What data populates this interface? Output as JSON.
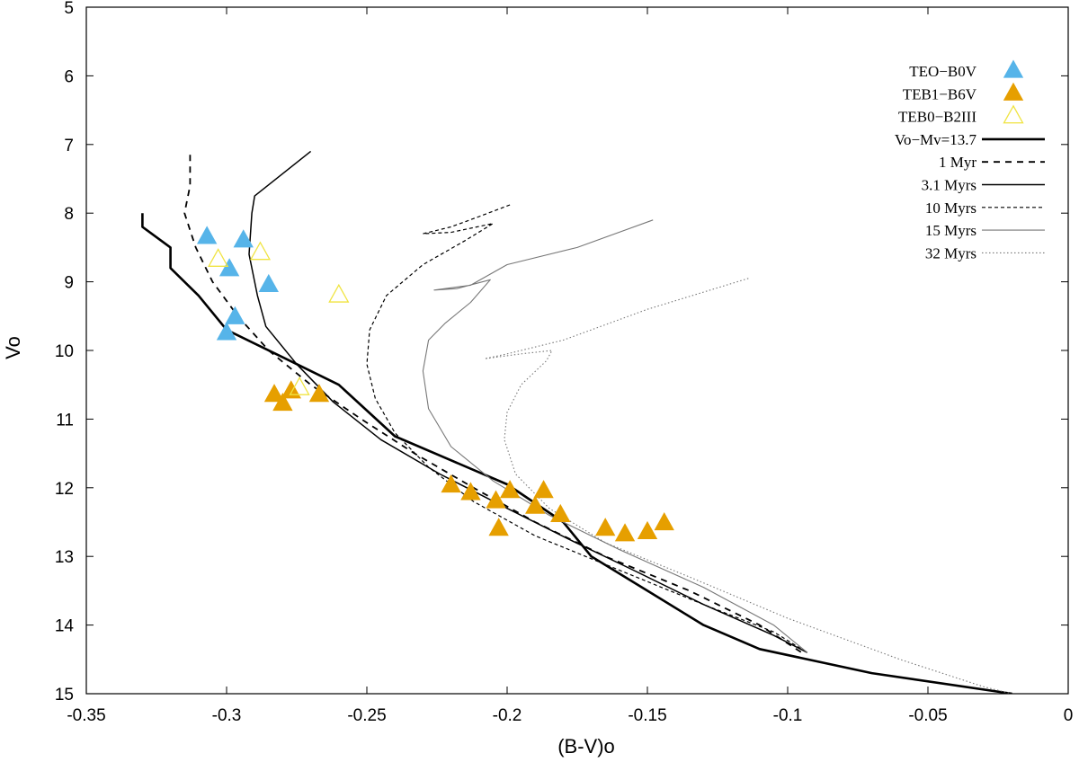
{
  "chart_data": {
    "type": "scatter",
    "title": "",
    "xlabel": "(B-V)o",
    "ylabel": "Vo",
    "xlim": [
      -0.35,
      0
    ],
    "ylim": [
      5,
      15
    ],
    "y_inverted": true,
    "grid": false,
    "legend_position": "top-right",
    "x_ticks": [
      -0.35,
      -0.3,
      -0.25,
      -0.2,
      -0.15,
      -0.1,
      -0.05,
      0
    ],
    "x_tick_labels": [
      "-0.35",
      "-0.3",
      "-0.25",
      "-0.2",
      "-0.15",
      "-0.1",
      "-0.05",
      "0"
    ],
    "y_ticks": [
      5,
      6,
      7,
      8,
      9,
      10,
      11,
      12,
      13,
      14,
      15
    ],
    "y_tick_labels": [
      "5",
      "6",
      "7",
      "8",
      "9",
      "10",
      "11",
      "12",
      "13",
      "14",
      "15"
    ],
    "series": [
      {
        "name": "TEO−B0V",
        "kind": "scatter",
        "marker": "triangle-filled",
        "color": "#56b4e9",
        "points": [
          [
            -0.307,
            8.35
          ],
          [
            -0.294,
            8.4
          ],
          [
            -0.299,
            8.82
          ],
          [
            -0.285,
            9.05
          ],
          [
            -0.297,
            9.52
          ],
          [
            -0.3,
            9.75
          ]
        ]
      },
      {
        "name": "TEB1−B6V",
        "kind": "scatter",
        "marker": "triangle-filled",
        "color": "#e69f00",
        "points": [
          [
            -0.283,
            10.65
          ],
          [
            -0.277,
            10.6
          ],
          [
            -0.28,
            10.78
          ],
          [
            -0.267,
            10.65
          ],
          [
            -0.22,
            11.97
          ],
          [
            -0.213,
            12.08
          ],
          [
            -0.204,
            12.2
          ],
          [
            -0.199,
            12.05
          ],
          [
            -0.203,
            12.6
          ],
          [
            -0.187,
            12.05
          ],
          [
            -0.19,
            12.28
          ],
          [
            -0.181,
            12.4
          ],
          [
            -0.165,
            12.6
          ],
          [
            -0.158,
            12.68
          ],
          [
            -0.15,
            12.65
          ],
          [
            -0.144,
            12.52
          ]
        ]
      },
      {
        "name": "TEB0−B2III",
        "kind": "scatter",
        "marker": "triangle-open",
        "color": "#f0e442",
        "points": [
          [
            -0.303,
            8.68
          ],
          [
            -0.288,
            8.58
          ],
          [
            -0.26,
            9.2
          ],
          [
            -0.274,
            10.55
          ]
        ]
      },
      {
        "name": "Vo−Mv=13.7",
        "kind": "line",
        "style": "solid-thick",
        "color": "#000000",
        "points": [
          [
            -0.33,
            8.0
          ],
          [
            -0.33,
            8.2
          ],
          [
            -0.32,
            8.5
          ],
          [
            -0.32,
            8.8
          ],
          [
            -0.31,
            9.2
          ],
          [
            -0.3,
            9.7
          ],
          [
            -0.28,
            10.1
          ],
          [
            -0.26,
            10.5
          ],
          [
            -0.24,
            11.25
          ],
          [
            -0.2,
            11.95
          ],
          [
            -0.18,
            12.5
          ],
          [
            -0.17,
            13.0
          ],
          [
            -0.15,
            13.5
          ],
          [
            -0.13,
            14.0
          ],
          [
            -0.11,
            14.35
          ],
          [
            -0.07,
            14.7
          ],
          [
            -0.02,
            15.0
          ]
        ]
      },
      {
        "name": "1 Myr",
        "kind": "line",
        "style": "dashed",
        "color": "#000000",
        "points": [
          [
            -0.313,
            7.15
          ],
          [
            -0.313,
            7.6
          ],
          [
            -0.315,
            8.0
          ],
          [
            -0.311,
            8.5
          ],
          [
            -0.305,
            9.0
          ],
          [
            -0.296,
            9.5
          ],
          [
            -0.285,
            10.0
          ],
          [
            -0.27,
            10.5
          ],
          [
            -0.252,
            11.0
          ],
          [
            -0.233,
            11.5
          ],
          [
            -0.212,
            12.0
          ],
          [
            -0.19,
            12.5
          ],
          [
            -0.165,
            13.0
          ],
          [
            -0.135,
            13.5
          ],
          [
            -0.11,
            14.0
          ],
          [
            -0.095,
            14.4
          ]
        ]
      },
      {
        "name": "3.1 Myrs",
        "kind": "line",
        "style": "solid",
        "color": "#000000",
        "points": [
          [
            -0.27,
            7.1
          ],
          [
            -0.29,
            7.75
          ],
          [
            -0.291,
            8.0
          ],
          [
            -0.292,
            8.6
          ],
          [
            -0.289,
            9.2
          ],
          [
            -0.286,
            9.65
          ],
          [
            -0.275,
            10.2
          ],
          [
            -0.262,
            10.75
          ],
          [
            -0.245,
            11.3
          ],
          [
            -0.224,
            11.8
          ],
          [
            -0.2,
            12.3
          ],
          [
            -0.178,
            12.75
          ],
          [
            -0.155,
            13.2
          ],
          [
            -0.13,
            13.7
          ],
          [
            -0.105,
            14.15
          ],
          [
            -0.093,
            14.4
          ]
        ]
      },
      {
        "name": "10 Myrs",
        "kind": "line",
        "style": "short-dashed",
        "color": "#000000",
        "points": [
          [
            -0.199,
            7.88
          ],
          [
            -0.21,
            8.05
          ],
          [
            -0.22,
            8.2
          ],
          [
            -0.23,
            8.3
          ],
          [
            -0.22,
            8.28
          ],
          [
            -0.205,
            8.15
          ],
          [
            -0.215,
            8.4
          ],
          [
            -0.23,
            8.75
          ],
          [
            -0.243,
            9.2
          ],
          [
            -0.249,
            9.7
          ],
          [
            -0.25,
            10.2
          ],
          [
            -0.247,
            10.7
          ],
          [
            -0.24,
            11.2
          ],
          [
            -0.228,
            11.7
          ],
          [
            -0.212,
            12.2
          ],
          [
            -0.19,
            12.7
          ],
          [
            -0.16,
            13.2
          ],
          [
            -0.13,
            13.7
          ],
          [
            -0.105,
            14.1
          ],
          [
            -0.093,
            14.4
          ]
        ]
      },
      {
        "name": "15 Myrs",
        "kind": "line",
        "style": "thin-gray",
        "color": "#777777",
        "points": [
          [
            -0.148,
            8.1
          ],
          [
            -0.175,
            8.5
          ],
          [
            -0.2,
            8.75
          ],
          [
            -0.213,
            9.05
          ],
          [
            -0.226,
            9.12
          ],
          [
            -0.218,
            9.1
          ],
          [
            -0.206,
            8.97
          ],
          [
            -0.213,
            9.3
          ],
          [
            -0.222,
            9.6
          ],
          [
            -0.228,
            9.85
          ],
          [
            -0.23,
            10.3
          ],
          [
            -0.228,
            10.85
          ],
          [
            -0.22,
            11.4
          ],
          [
            -0.205,
            11.9
          ],
          [
            -0.185,
            12.4
          ],
          [
            -0.16,
            12.9
          ],
          [
            -0.13,
            13.45
          ],
          [
            -0.105,
            14.0
          ],
          [
            -0.093,
            14.4
          ]
        ]
      },
      {
        "name": "32 Myrs",
        "kind": "line",
        "style": "dotted-gray",
        "color": "#777777",
        "points": [
          [
            -0.114,
            8.95
          ],
          [
            -0.15,
            9.4
          ],
          [
            -0.18,
            9.85
          ],
          [
            -0.2,
            10.05
          ],
          [
            -0.208,
            10.12
          ],
          [
            -0.195,
            10.05
          ],
          [
            -0.184,
            10.0
          ],
          [
            -0.186,
            10.15
          ],
          [
            -0.195,
            10.5
          ],
          [
            -0.2,
            10.9
          ],
          [
            -0.201,
            11.3
          ],
          [
            -0.197,
            11.8
          ],
          [
            -0.185,
            12.3
          ],
          [
            -0.165,
            12.8
          ],
          [
            -0.135,
            13.3
          ],
          [
            -0.1,
            13.9
          ],
          [
            -0.06,
            14.5
          ],
          [
            -0.03,
            14.9
          ],
          [
            -0.02,
            15.0
          ]
        ]
      }
    ]
  }
}
